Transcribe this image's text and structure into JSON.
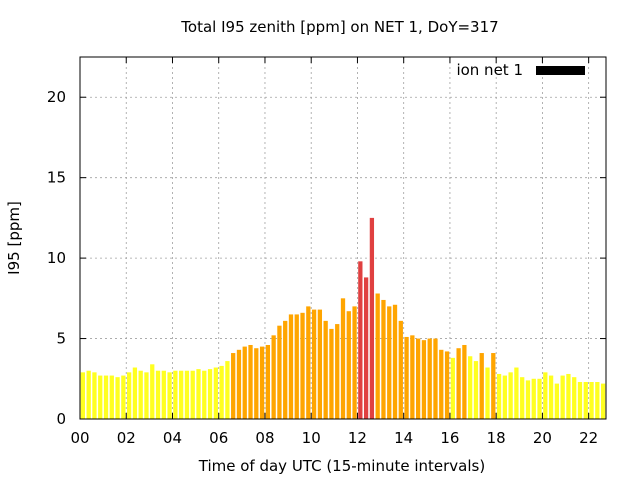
{
  "chart_data": {
    "type": "bar",
    "title": "Total I95 zenith [ppm] on NET 1, DoY=317",
    "xlabel": "Time of day UTC (15-minute intervals)",
    "ylabel": "I95 [ppm]",
    "xlim": [
      0,
      22.75
    ],
    "ylim": [
      0,
      22.5
    ],
    "x_ticks": [
      {
        "value": 0,
        "label": "00"
      },
      {
        "value": 2,
        "label": "02"
      },
      {
        "value": 4,
        "label": "04"
      },
      {
        "value": 6,
        "label": "06"
      },
      {
        "value": 8,
        "label": "08"
      },
      {
        "value": 10,
        "label": "10"
      },
      {
        "value": 12,
        "label": "12"
      },
      {
        "value": 14,
        "label": "14"
      },
      {
        "value": 16,
        "label": "16"
      },
      {
        "value": 18,
        "label": "18"
      },
      {
        "value": 20,
        "label": "20"
      },
      {
        "value": 22,
        "label": "22"
      }
    ],
    "y_ticks": [
      {
        "value": 0,
        "label": "0"
      },
      {
        "value": 5,
        "label": "5"
      },
      {
        "value": 10,
        "label": "10"
      },
      {
        "value": 15,
        "label": "15"
      },
      {
        "value": 20,
        "label": "20"
      }
    ],
    "grid": true,
    "legend": {
      "position": "top-right",
      "label": "ion net 1",
      "color": "#000000"
    },
    "colors": {
      "low": "#ffff20",
      "mid": "#ffa500",
      "high": "#e04040"
    },
    "series": [
      {
        "name": "ion net 1",
        "x": [
          0,
          0.25,
          0.5,
          0.75,
          1,
          1.25,
          1.5,
          1.75,
          2,
          2.25,
          2.5,
          2.75,
          3,
          3.25,
          3.5,
          3.75,
          4,
          4.25,
          4.5,
          4.75,
          5,
          5.25,
          5.5,
          5.75,
          6,
          6.25,
          6.5,
          6.75,
          7,
          7.25,
          7.5,
          7.75,
          8,
          8.25,
          8.5,
          8.75,
          9,
          9.25,
          9.5,
          9.75,
          10,
          10.25,
          10.5,
          10.75,
          11,
          11.25,
          11.5,
          11.75,
          12,
          12.25,
          12.5,
          12.75,
          13,
          13.25,
          13.5,
          13.75,
          14,
          14.25,
          14.5,
          14.75,
          15,
          15.25,
          15.5,
          15.75,
          16,
          16.25,
          16.5,
          16.75,
          17,
          17.25,
          17.5,
          17.75,
          18,
          18.25,
          18.5,
          18.75,
          19,
          19.25,
          19.5,
          19.75,
          20,
          20.25,
          20.5,
          20.75,
          21,
          21.25,
          21.5,
          21.75,
          22,
          22.25,
          22.5
        ],
        "values": [
          2.9,
          3.0,
          2.9,
          2.7,
          2.7,
          2.7,
          2.6,
          2.7,
          2.9,
          3.2,
          3.0,
          2.9,
          3.4,
          3.0,
          3.0,
          2.9,
          3.0,
          3.0,
          3.0,
          3.0,
          3.1,
          3.0,
          3.1,
          3.2,
          3.3,
          3.6,
          4.1,
          4.3,
          4.5,
          4.6,
          4.4,
          4.5,
          4.6,
          5.2,
          5.8,
          6.1,
          6.5,
          6.5,
          6.6,
          7.0,
          6.8,
          6.8,
          6.1,
          5.6,
          5.9,
          7.5,
          6.7,
          7.0,
          9.8,
          8.8,
          12.5,
          7.8,
          7.4,
          7.0,
          7.1,
          6.1,
          5.1,
          5.2,
          5.0,
          4.9,
          5.0,
          5.0,
          4.3,
          4.2,
          3.8,
          4.4,
          4.6,
          3.9,
          3.6,
          4.1,
          3.2,
          4.1,
          2.8,
          2.7,
          2.9,
          3.2,
          2.6,
          2.4,
          2.5,
          2.5,
          2.9,
          2.7,
          2.2,
          2.7,
          2.8,
          2.6,
          2.3,
          2.3,
          2.3,
          2.3,
          2.2
        ],
        "levels": [
          "low",
          "low",
          "low",
          "low",
          "low",
          "low",
          "low",
          "low",
          "low",
          "low",
          "low",
          "low",
          "low",
          "low",
          "low",
          "low",
          "low",
          "low",
          "low",
          "low",
          "low",
          "low",
          "low",
          "low",
          "low",
          "low",
          "mid",
          "mid",
          "mid",
          "mid",
          "mid",
          "mid",
          "mid",
          "mid",
          "mid",
          "mid",
          "mid",
          "mid",
          "mid",
          "mid",
          "mid",
          "mid",
          "mid",
          "mid",
          "mid",
          "mid",
          "mid",
          "mid",
          "high",
          "high",
          "high",
          "mid",
          "mid",
          "mid",
          "mid",
          "mid",
          "mid",
          "mid",
          "mid",
          "mid",
          "mid",
          "mid",
          "mid",
          "mid",
          "low",
          "mid",
          "mid",
          "low",
          "low",
          "mid",
          "low",
          "mid",
          "low",
          "low",
          "low",
          "low",
          "low",
          "low",
          "low",
          "low",
          "low",
          "low",
          "low",
          "low",
          "low",
          "low",
          "low",
          "low",
          "low",
          "low",
          "low"
        ]
      }
    ]
  }
}
